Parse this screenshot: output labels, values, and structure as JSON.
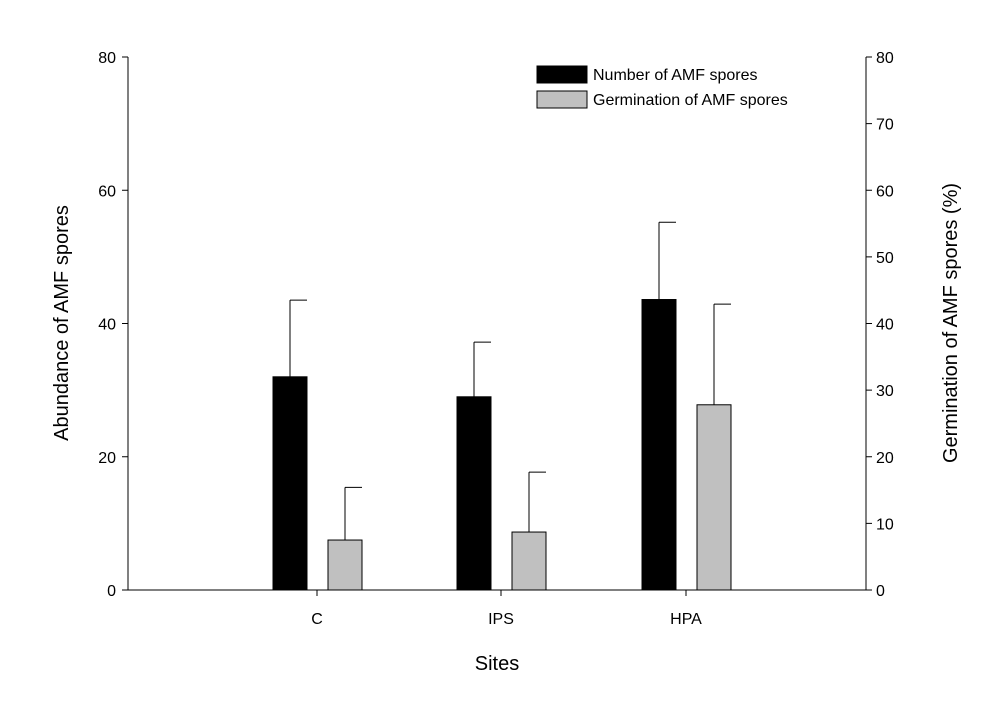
{
  "chart_data": {
    "type": "bar",
    "categories": [
      "C",
      "IPS",
      "HPA"
    ],
    "series": [
      {
        "name": "Number of AMF spores",
        "axis": "left",
        "color": "#000000",
        "values": [
          32.0,
          29.0,
          43.6
        ],
        "error": [
          11.5,
          8.2,
          11.6
        ]
      },
      {
        "name": "Germination of AMF spores",
        "axis": "right",
        "color": "#c0c0c0",
        "values": [
          7.5,
          8.7,
          27.8
        ],
        "error": [
          7.9,
          9.0,
          15.1
        ]
      }
    ],
    "xlabel": "Sites",
    "ylabel": "Abundance of AMF spores",
    "y2label": "Germination of AMF spores (%)",
    "ylim": [
      0,
      80
    ],
    "y2lim": [
      0,
      80
    ],
    "yticks": [
      "0",
      "20",
      "40",
      "60",
      "80"
    ],
    "y2ticks": [
      "0",
      "10",
      "20",
      "30",
      "40",
      "50",
      "60",
      "70",
      "80"
    ],
    "grid": false,
    "legend_position": "top-right"
  }
}
